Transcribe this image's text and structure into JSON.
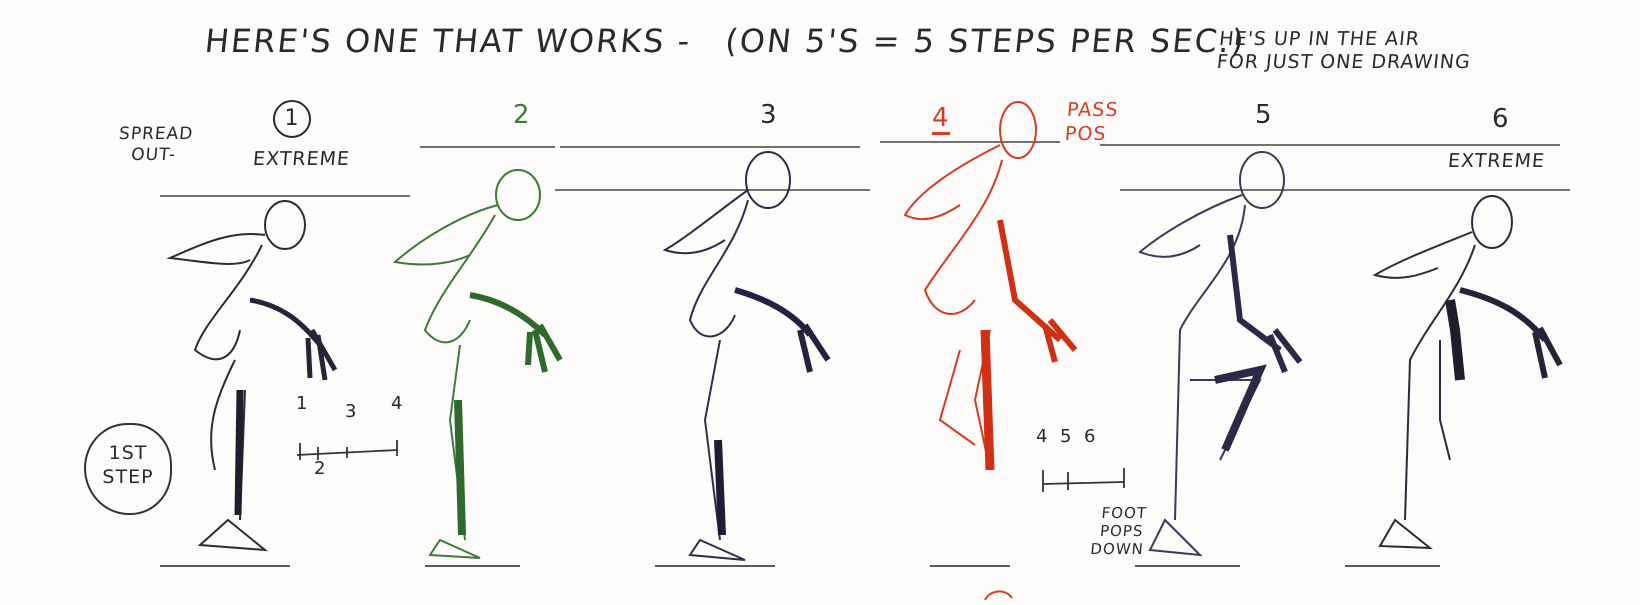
{
  "title": {
    "line": "HERE'S ONE THAT WORKS -",
    "paren": "(ON 5'S = 5 STEPS PER SEC.)"
  },
  "note": {
    "line1": "HE'S UP IN THE AIR",
    "line2": "FOR JUST ONE DRAWING"
  },
  "spread_label": {
    "line1": "SPREAD",
    "line2": "OUT-"
  },
  "frames": [
    {
      "number": "1",
      "label": "EXTREME",
      "color": "#2b2b3a"
    },
    {
      "number": "2",
      "label": "",
      "color": "#3e7a3a"
    },
    {
      "number": "3",
      "label": "",
      "color": "#2f2d4a"
    },
    {
      "number": "4",
      "label": "PASS POS",
      "color": "#d93b22"
    },
    {
      "number": "5",
      "label": "",
      "color": "#3a3a5a"
    },
    {
      "number": "6",
      "label": "EXTREME",
      "color": "#2b2b3a"
    }
  ],
  "pass_label": {
    "line1": "PASS",
    "line2": "POS"
  },
  "step_badge": {
    "line1": "1ST",
    "line2": "STEP"
  },
  "timing_chart_a": {
    "ticks_top": [
      "1",
      "3",
      "4"
    ],
    "tick_bottom": "2"
  },
  "timing_chart_b": {
    "ticks_top": [
      "4",
      "5",
      "6"
    ]
  },
  "foot_note": {
    "line1": "FOOT",
    "line2": "POPS",
    "line3": "DOWN"
  },
  "colors": {
    "ink": "#2a2a2a",
    "green": "#3e7a3a",
    "red": "#d93b22",
    "navy": "#2f2d4a"
  }
}
